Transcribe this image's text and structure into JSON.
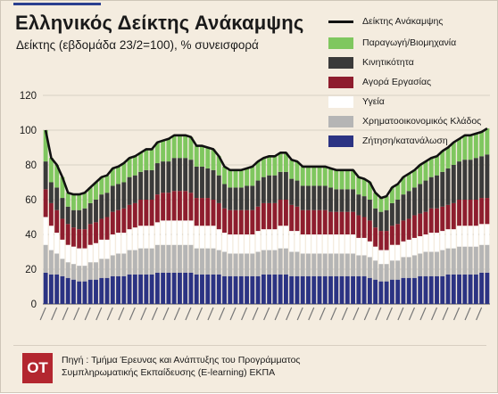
{
  "header": {
    "title": "Ελληνικός Δείκτης Ανάκαμψης",
    "subtitle": "Δείκτης (εβδομάδα 23/2=100), % συνεισφορά"
  },
  "footer": {
    "logo": "OT",
    "source_line1": "Πηγή : Τμήμα Έρευνας και Ανάπτυξης του Προγράμματος",
    "source_line2": "Συμπληρωματικής Εκπαίδευσης (E-learning) ΕΚΠΑ"
  },
  "colors": {
    "production": "#7fc75f",
    "mobility": "#3a3a3a",
    "labor": "#8e1d2e",
    "health": "#ffffff",
    "finance": "#b5b5b5",
    "demand": "#2b3383",
    "index_line": "#111111"
  },
  "chart_data": {
    "type": "bar",
    "stacked": true,
    "title": "Ελληνικός Δείκτης Ανάκαμψης",
    "subtitle": "Δείκτης (εβδομάδα 23/2=100), % συνεισφορά",
    "ylim": [
      0,
      120
    ],
    "yticks": [
      0,
      20,
      40,
      60,
      80,
      100,
      120
    ],
    "legend_position": "top-right",
    "weeks_count": 80,
    "x_tick_labels_legible": false,
    "series": [
      {
        "name": "Ζήτηση/κατανάλωση",
        "key": "demand",
        "values": [
          18,
          17,
          17,
          16,
          15,
          14,
          13,
          13,
          14,
          14,
          15,
          15,
          16,
          16,
          16,
          17,
          17,
          17,
          17,
          17,
          18,
          18,
          18,
          18,
          18,
          18,
          18,
          17,
          17,
          17,
          17,
          17,
          16,
          16,
          16,
          16,
          16,
          16,
          16,
          17,
          17,
          17,
          17,
          17,
          16,
          16,
          16,
          16,
          16,
          16,
          16,
          16,
          16,
          16,
          16,
          16,
          16,
          16,
          15,
          14,
          13,
          13,
          14,
          14,
          15,
          15,
          15,
          16,
          16,
          16,
          16,
          16,
          17,
          17,
          17,
          17,
          17,
          17,
          18,
          18
        ]
      },
      {
        "name": "Χρηματοοικονομικός Κλάδος",
        "key": "finance",
        "values": [
          16,
          14,
          12,
          10,
          9,
          9,
          9,
          9,
          10,
          10,
          11,
          11,
          12,
          13,
          13,
          14,
          14,
          15,
          15,
          15,
          16,
          16,
          16,
          16,
          16,
          16,
          16,
          15,
          15,
          15,
          15,
          14,
          14,
          13,
          13,
          13,
          13,
          13,
          14,
          14,
          14,
          14,
          15,
          15,
          14,
          14,
          13,
          13,
          13,
          13,
          13,
          13,
          13,
          13,
          13,
          13,
          12,
          12,
          12,
          11,
          10,
          10,
          11,
          11,
          12,
          12,
          13,
          13,
          14,
          14,
          14,
          15,
          15,
          15,
          16,
          16,
          16,
          16,
          16,
          16
        ]
      },
      {
        "name": "Υγεία",
        "key": "health",
        "values": [
          16,
          14,
          12,
          11,
          10,
          10,
          10,
          10,
          10,
          11,
          11,
          11,
          12,
          12,
          12,
          12,
          13,
          13,
          13,
          13,
          13,
          14,
          14,
          14,
          14,
          14,
          14,
          13,
          13,
          13,
          13,
          12,
          11,
          11,
          11,
          11,
          11,
          11,
          12,
          12,
          12,
          12,
          13,
          13,
          12,
          12,
          11,
          11,
          11,
          11,
          11,
          11,
          11,
          11,
          11,
          11,
          10,
          10,
          9,
          8,
          8,
          8,
          9,
          9,
          9,
          10,
          10,
          10,
          10,
          11,
          11,
          11,
          11,
          11,
          12,
          12,
          12,
          12,
          12,
          12
        ]
      },
      {
        "name": "Αγορά Εργασίας",
        "key": "labor",
        "values": [
          16,
          13,
          13,
          12,
          12,
          11,
          11,
          11,
          12,
          12,
          12,
          13,
          13,
          13,
          14,
          14,
          14,
          15,
          15,
          15,
          16,
          16,
          16,
          17,
          17,
          17,
          16,
          16,
          16,
          16,
          15,
          15,
          14,
          14,
          14,
          14,
          14,
          14,
          14,
          15,
          15,
          15,
          15,
          15,
          15,
          14,
          14,
          14,
          14,
          14,
          14,
          13,
          13,
          13,
          13,
          13,
          13,
          12,
          12,
          11,
          11,
          11,
          11,
          12,
          12,
          12,
          13,
          13,
          13,
          14,
          14,
          14,
          14,
          15,
          15,
          15,
          15,
          15,
          15,
          15
        ]
      },
      {
        "name": "Κινητικότητα",
        "key": "mobility",
        "values": [
          16,
          12,
          13,
          12,
          10,
          10,
          11,
          12,
          12,
          13,
          14,
          14,
          15,
          15,
          15,
          16,
          16,
          16,
          17,
          17,
          18,
          18,
          18,
          19,
          19,
          19,
          19,
          18,
          18,
          17,
          17,
          16,
          14,
          13,
          13,
          13,
          14,
          14,
          15,
          15,
          16,
          16,
          16,
          16,
          15,
          15,
          14,
          14,
          14,
          14,
          14,
          14,
          13,
          13,
          13,
          13,
          12,
          12,
          12,
          11,
          11,
          12,
          13,
          14,
          15,
          16,
          16,
          17,
          18,
          18,
          19,
          20,
          21,
          22,
          22,
          23,
          23,
          24,
          24,
          25
        ]
      },
      {
        "name": "Παραγωγή/Βιομηχανία",
        "key": "production",
        "values": [
          18,
          14,
          13,
          12,
          8,
          9,
          9,
          9,
          9,
          10,
          10,
          10,
          10,
          10,
          11,
          11,
          11,
          11,
          12,
          12,
          12,
          12,
          13,
          13,
          13,
          13,
          13,
          12,
          12,
          12,
          12,
          11,
          10,
          10,
          10,
          10,
          10,
          11,
          11,
          11,
          11,
          11,
          11,
          11,
          11,
          11,
          11,
          11,
          11,
          11,
          11,
          11,
          11,
          11,
          11,
          11,
          10,
          10,
          10,
          9,
          8,
          8,
          9,
          9,
          10,
          10,
          10,
          11,
          11,
          11,
          11,
          12,
          12,
          13,
          13,
          14,
          14,
          14,
          14,
          15
        ]
      }
    ],
    "line": {
      "name": "Δείκτης Ανάκαμψης",
      "values": [
        100,
        84,
        80,
        73,
        64,
        63,
        63,
        64,
        67,
        70,
        73,
        74,
        78,
        79,
        81,
        84,
        85,
        87,
        89,
        89,
        93,
        94,
        95,
        97,
        97,
        97,
        96,
        91,
        91,
        90,
        89,
        85,
        79,
        77,
        77,
        77,
        78,
        79,
        82,
        84,
        85,
        85,
        87,
        87,
        83,
        82,
        79,
        79,
        79,
        79,
        79,
        78,
        77,
        77,
        77,
        77,
        73,
        72,
        70,
        64,
        61,
        62,
        67,
        69,
        73,
        75,
        77,
        80,
        82,
        84,
        85,
        88,
        90,
        93,
        95,
        97,
        97,
        98,
        99,
        101
      ]
    }
  }
}
